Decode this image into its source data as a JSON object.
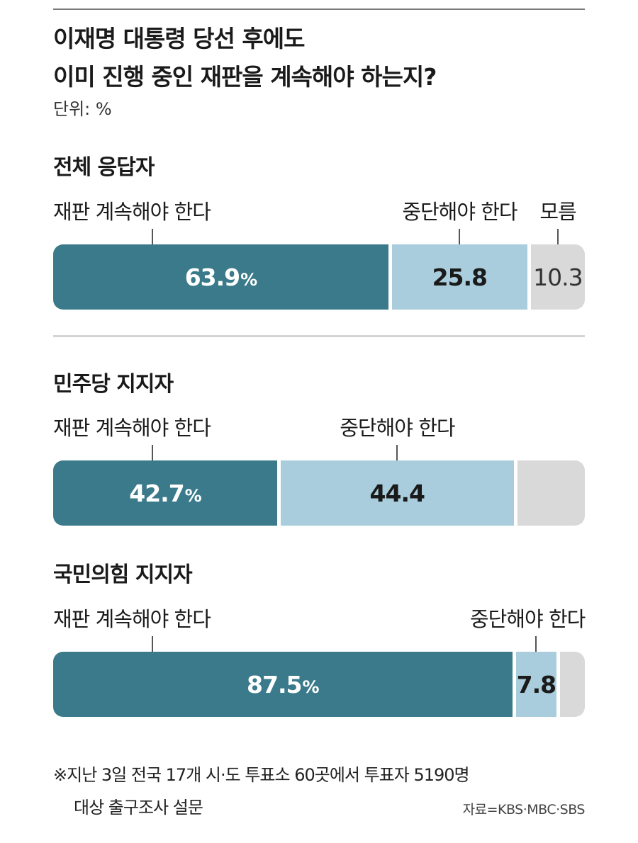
{
  "title_line1": "이재명 대통령 당선 후에도",
  "title_line2": "이미 진행 중인 재판을 계속해야 하는지?",
  "unit": "단위: %",
  "colors": {
    "continue": "#3a7a8a",
    "stop": "#a9cddc",
    "unknown": "#d9d9d9"
  },
  "chart_data": [
    {
      "type": "bar",
      "stacked": true,
      "group": "전체 응답자",
      "categories": [
        "재판 계속해야 한다",
        "중단해야 한다",
        "모름"
      ],
      "values": [
        63.9,
        25.8,
        10.3
      ],
      "value_labels": [
        "63.9",
        "25.8",
        "10.3"
      ],
      "category_labels": [
        "재판 계속해야 한다",
        "중단해야 한다",
        "모름"
      ],
      "unit": "%"
    },
    {
      "type": "bar",
      "stacked": true,
      "group": "민주당 지지자",
      "categories": [
        "재판 계속해야 한다",
        "중단해야 한다",
        "모름"
      ],
      "values": [
        42.7,
        44.4,
        12.9
      ],
      "value_labels": [
        "42.7",
        "44.4",
        ""
      ],
      "category_labels": [
        "재판 계속해야 한다",
        "중단해야 한다",
        ""
      ],
      "unit": "%"
    },
    {
      "type": "bar",
      "stacked": true,
      "group": "국민의힘 지지자",
      "categories": [
        "재판 계속해야 한다",
        "중단해야 한다",
        "모름"
      ],
      "values": [
        87.5,
        7.8,
        4.7
      ],
      "value_labels": [
        "87.5",
        "7.8",
        ""
      ],
      "category_labels": [
        "재판 계속해야 한다",
        "중단해야 한다",
        ""
      ],
      "unit": "%"
    }
  ],
  "pct_sign": "%",
  "footnote_line1": "※지난 3일 전국 17개 시·도 투표소 60곳에서 투표자 5190명",
  "footnote_line2": "대상 출구조사 설문",
  "source": "자료=KBS·MBC·SBS"
}
